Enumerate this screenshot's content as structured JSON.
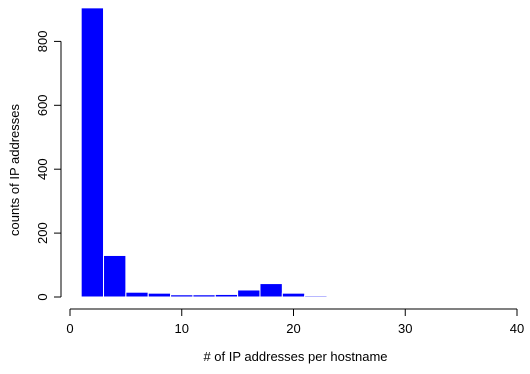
{
  "chart_data": {
    "type": "bar",
    "title": "",
    "xlabel": "# of IP addresses per hostname",
    "ylabel": "counts of IP addresses",
    "xlim": [
      0,
      40
    ],
    "ylim": [
      0,
      900
    ],
    "grid": false,
    "legend": "none",
    "bar_color": "#0000ff",
    "x_ticks": [
      0,
      10,
      20,
      30,
      40
    ],
    "y_ticks": [
      0,
      200,
      400,
      600,
      800
    ],
    "bins": [
      {
        "x0": 1,
        "x1": 3,
        "count": 905
      },
      {
        "x0": 3,
        "x1": 5,
        "count": 130
      },
      {
        "x0": 5,
        "x1": 7,
        "count": 15
      },
      {
        "x0": 7,
        "x1": 9,
        "count": 12
      },
      {
        "x0": 9,
        "x1": 11,
        "count": 7
      },
      {
        "x0": 11,
        "x1": 13,
        "count": 7
      },
      {
        "x0": 13,
        "x1": 15,
        "count": 8
      },
      {
        "x0": 15,
        "x1": 17,
        "count": 22
      },
      {
        "x0": 17,
        "x1": 19,
        "count": 42
      },
      {
        "x0": 19,
        "x1": 21,
        "count": 12
      },
      {
        "x0": 21,
        "x1": 23,
        "count": 4
      },
      {
        "x0": 23,
        "x1": 25,
        "count": 1
      },
      {
        "x0": 25,
        "x1": 27,
        "count": 1
      },
      {
        "x0": 27,
        "x1": 29,
        "count": 1
      },
      {
        "x0": 29,
        "x1": 31,
        "count": 1
      },
      {
        "x0": 31,
        "x1": 33,
        "count": 1
      },
      {
        "x0": 33,
        "x1": 35,
        "count": 3
      },
      {
        "x0": 35,
        "x1": 37,
        "count": 1
      },
      {
        "x0": 37,
        "x1": 39,
        "count": 1
      },
      {
        "x0": 39,
        "x1": 41,
        "count": 1
      }
    ]
  }
}
